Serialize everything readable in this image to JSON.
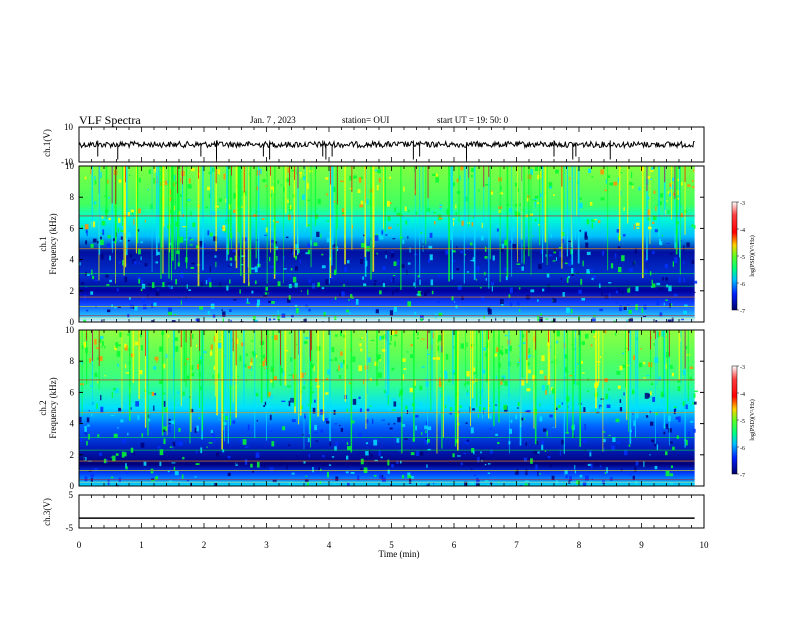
{
  "header": {
    "title": "VLF Spectra",
    "date": "Jan. 7 , 2023",
    "station": "station= OUI",
    "start": "start  UT =   19: 50: 0"
  },
  "chart_data": [
    {
      "type": "line",
      "panel": "ch1-waveform",
      "ylabel": "ch.1(V)",
      "ylim": [
        -10,
        10
      ],
      "yticks": [
        "10",
        "-10"
      ],
      "xlim": [
        0,
        10
      ],
      "baseline": 0,
      "spikes_min": [
        0.3,
        0.62,
        1.95,
        2.2,
        2.95,
        3.05,
        3.9,
        3.95,
        4.05,
        5.35,
        5.45,
        6.2,
        7.6,
        7.9,
        7.95,
        8.5
      ]
    },
    {
      "type": "heatmap",
      "panel": "ch1-spectrogram",
      "ylabel": "ch.1\nFrequency (kHz)",
      "xlim": [
        0,
        10
      ],
      "ylim": [
        0,
        10
      ],
      "yticks": [
        "0",
        "2",
        "4",
        "6",
        "8",
        "10"
      ],
      "colorbar": {
        "label": "log(PSD)(V²/Hz)",
        "range": [
          -7,
          -3
        ],
        "ticks": [
          "-3",
          "-4",
          "-5",
          "-6",
          "-7"
        ]
      }
    },
    {
      "type": "heatmap",
      "panel": "ch2-spectrogram",
      "ylabel": "ch.2\nFrequency (kHz)",
      "xlim": [
        0,
        10
      ],
      "ylim": [
        0,
        10
      ],
      "yticks": [
        "0",
        "2",
        "4",
        "6",
        "8",
        "10"
      ],
      "colorbar": {
        "label": "log(PSD)(V²/Hz)",
        "range": [
          -7,
          -3
        ],
        "ticks": [
          "-3",
          "-4",
          "-5",
          "-6",
          "-7"
        ]
      }
    },
    {
      "type": "line",
      "panel": "ch3-waveform",
      "ylabel": "ch.3(V)",
      "ylim": [
        -5,
        5
      ],
      "yticks": [
        "5",
        "-5"
      ],
      "xlim": [
        0,
        10
      ],
      "values_constant": -2
    }
  ],
  "xaxis": {
    "label": "Time (min)",
    "ticks": [
      "0",
      "1",
      "2",
      "3",
      "4",
      "5",
      "6",
      "7",
      "8",
      "9",
      "10"
    ]
  },
  "colors": {
    "dark_blue": "#00007a",
    "blue": "#0030ff",
    "cyan": "#00e0ff",
    "green": "#00ff30",
    "yellow": "#ffff00",
    "orange": "#ff9000",
    "red": "#e00000"
  }
}
